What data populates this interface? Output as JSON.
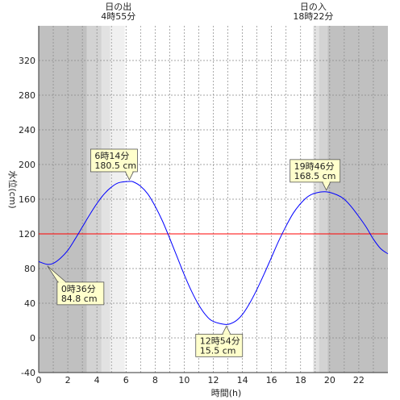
{
  "chart_data": {
    "type": "line",
    "title": "",
    "xlabel": "時間(h)",
    "ylabel": "水位(cm)",
    "xlim": [
      0,
      24
    ],
    "ylim": [
      -40,
      360
    ],
    "x_ticks": [
      0,
      2,
      4,
      6,
      8,
      10,
      12,
      14,
      16,
      18,
      20,
      22
    ],
    "y_ticks": [
      -40,
      0,
      40,
      80,
      120,
      160,
      200,
      240,
      280,
      320
    ],
    "grid": true,
    "reference_line": {
      "value": 120,
      "color": "#ff0000"
    },
    "sunrise": {
      "label": "日の出",
      "time_text": "4時55分",
      "hour": 4.917
    },
    "sunset": {
      "label": "日の入",
      "time_text": "18時22分",
      "hour": 18.367
    },
    "series": [
      {
        "color": "#0000ff",
        "points": [
          [
            0,
            88
          ],
          [
            0.6,
            84.8
          ],
          [
            1,
            86
          ],
          [
            1.5,
            92
          ],
          [
            2,
            101
          ],
          [
            2.5,
            114
          ],
          [
            3,
            128
          ],
          [
            3.5,
            142
          ],
          [
            4,
            155
          ],
          [
            4.5,
            166
          ],
          [
            5,
            174
          ],
          [
            5.5,
            179
          ],
          [
            6.23,
            180.5
          ],
          [
            6.5,
            180
          ],
          [
            7,
            175
          ],
          [
            7.5,
            166
          ],
          [
            8,
            152
          ],
          [
            8.5,
            135
          ],
          [
            9,
            115
          ],
          [
            9.5,
            94
          ],
          [
            10,
            73
          ],
          [
            10.5,
            54
          ],
          [
            11,
            38
          ],
          [
            11.5,
            26
          ],
          [
            12,
            19
          ],
          [
            12.9,
            15.5
          ],
          [
            13.5,
            19
          ],
          [
            14,
            27
          ],
          [
            14.5,
            40
          ],
          [
            15,
            56
          ],
          [
            15.5,
            74
          ],
          [
            16,
            93
          ],
          [
            16.5,
            112
          ],
          [
            17,
            129
          ],
          [
            17.5,
            144
          ],
          [
            18,
            155
          ],
          [
            18.5,
            163
          ],
          [
            19,
            167
          ],
          [
            19.77,
            168.5
          ],
          [
            20.5,
            165
          ],
          [
            21,
            160
          ],
          [
            21.5,
            151
          ],
          [
            22,
            140
          ],
          [
            22.5,
            128
          ],
          [
            23,
            114
          ],
          [
            23.5,
            103
          ],
          [
            24,
            97
          ]
        ]
      }
    ],
    "annotations": [
      {
        "time": "0時36分",
        "value": "84.8 cm",
        "x": 0.6,
        "y": 84.8
      },
      {
        "time": "6時14分",
        "value": "180.5 cm",
        "x": 6.23,
        "y": 180.5
      },
      {
        "time": "12時54分",
        "value": "15.5 cm",
        "x": 12.9,
        "y": 15.5
      },
      {
        "time": "19時46分",
        "value": "168.5 cm",
        "x": 19.77,
        "y": 168.5
      }
    ]
  }
}
